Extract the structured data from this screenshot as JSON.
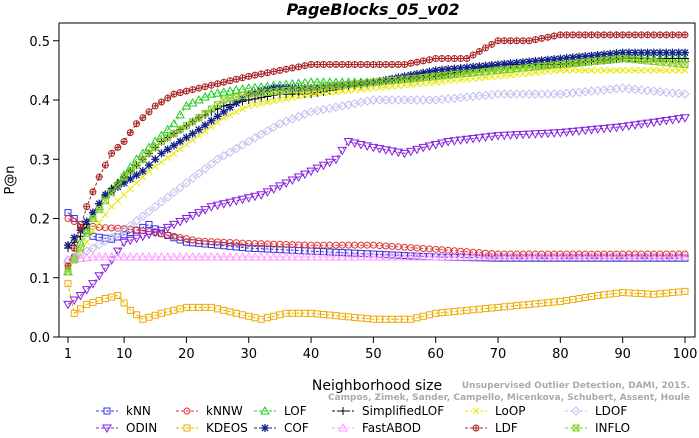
{
  "chart_data": {
    "type": "line",
    "title": "PageBlocks_05_v02",
    "xlabel": "Neighborhood size",
    "ylabel": "P@n",
    "xlim": [
      1,
      100
    ],
    "ylim": [
      0,
      0.53
    ],
    "xticks": [
      1,
      10,
      20,
      30,
      40,
      50,
      60,
      70,
      80,
      90,
      100
    ],
    "yticks": [
      0.0,
      0.1,
      0.2,
      0.3,
      0.4,
      0.5
    ],
    "grid": false,
    "legend_position": "bottom",
    "watermark": [
      "Campos, Zimek, Sander, Campello, Micenkova, Schubert, Assent, Houle",
      "Unsupervised Outlier Detection, DAMI, 2015."
    ],
    "series": [
      {
        "name": "kNN",
        "color": "#3333dd",
        "marker": "square",
        "points": [
          [
            1,
            0.21
          ],
          [
            3,
            0.19
          ],
          [
            5,
            0.17
          ],
          [
            8,
            0.165
          ],
          [
            12,
            0.18
          ],
          [
            14,
            0.19
          ],
          [
            16,
            0.175
          ],
          [
            20,
            0.16
          ],
          [
            25,
            0.155
          ],
          [
            30,
            0.15
          ],
          [
            40,
            0.145
          ],
          [
            50,
            0.14
          ],
          [
            60,
            0.135
          ],
          [
            70,
            0.133
          ],
          [
            80,
            0.133
          ],
          [
            90,
            0.133
          ],
          [
            100,
            0.133
          ]
        ]
      },
      {
        "name": "kNNW",
        "color": "#dd3333",
        "marker": "circle",
        "points": [
          [
            1,
            0.2
          ],
          [
            3,
            0.19
          ],
          [
            6,
            0.185
          ],
          [
            10,
            0.183
          ],
          [
            14,
            0.178
          ],
          [
            18,
            0.17
          ],
          [
            22,
            0.162
          ],
          [
            30,
            0.158
          ],
          [
            40,
            0.155
          ],
          [
            50,
            0.155
          ],
          [
            60,
            0.148
          ],
          [
            70,
            0.14
          ],
          [
            80,
            0.14
          ],
          [
            90,
            0.14
          ],
          [
            100,
            0.14
          ]
        ]
      },
      {
        "name": "LOF",
        "color": "#22cc22",
        "marker": "triangle-up",
        "points": [
          [
            1,
            0.11
          ],
          [
            3,
            0.16
          ],
          [
            5,
            0.2
          ],
          [
            7,
            0.24
          ],
          [
            9,
            0.26
          ],
          [
            12,
            0.3
          ],
          [
            15,
            0.33
          ],
          [
            18,
            0.36
          ],
          [
            20,
            0.39
          ],
          [
            24,
            0.41
          ],
          [
            30,
            0.42
          ],
          [
            40,
            0.43
          ],
          [
            50,
            0.43
          ],
          [
            60,
            0.44
          ],
          [
            70,
            0.45
          ],
          [
            80,
            0.46
          ],
          [
            90,
            0.47
          ],
          [
            100,
            0.47
          ]
        ]
      },
      {
        "name": "SimplifiedLOF",
        "color": "#000000",
        "marker": "plus",
        "points": [
          [
            1,
            0.15
          ],
          [
            3,
            0.17
          ],
          [
            5,
            0.21
          ],
          [
            7,
            0.24
          ],
          [
            10,
            0.27
          ],
          [
            13,
            0.3
          ],
          [
            16,
            0.33
          ],
          [
            19,
            0.35
          ],
          [
            22,
            0.37
          ],
          [
            26,
            0.39
          ],
          [
            30,
            0.4
          ],
          [
            35,
            0.41
          ],
          [
            40,
            0.41
          ],
          [
            45,
            0.42
          ],
          [
            50,
            0.43
          ],
          [
            60,
            0.44
          ],
          [
            70,
            0.46
          ],
          [
            80,
            0.46
          ],
          [
            90,
            0.47
          ],
          [
            100,
            0.47
          ]
        ]
      },
      {
        "name": "LoOP",
        "color": "#e8e800",
        "marker": "x",
        "points": [
          [
            1,
            0.12
          ],
          [
            3,
            0.14
          ],
          [
            5,
            0.18
          ],
          [
            8,
            0.22
          ],
          [
            11,
            0.25
          ],
          [
            14,
            0.28
          ],
          [
            18,
            0.31
          ],
          [
            22,
            0.34
          ],
          [
            26,
            0.37
          ],
          [
            30,
            0.39
          ],
          [
            35,
            0.4
          ],
          [
            40,
            0.41
          ],
          [
            50,
            0.42
          ],
          [
            60,
            0.43
          ],
          [
            70,
            0.44
          ],
          [
            80,
            0.45
          ],
          [
            90,
            0.45
          ],
          [
            100,
            0.45
          ]
        ]
      },
      {
        "name": "LDOF",
        "color": "#c0c0ee",
        "marker": "diamond",
        "points": [
          [
            1,
            0.13
          ],
          [
            5,
            0.15
          ],
          [
            10,
            0.18
          ],
          [
            15,
            0.22
          ],
          [
            20,
            0.26
          ],
          [
            25,
            0.3
          ],
          [
            30,
            0.33
          ],
          [
            35,
            0.36
          ],
          [
            40,
            0.38
          ],
          [
            45,
            0.39
          ],
          [
            50,
            0.4
          ],
          [
            60,
            0.4
          ],
          [
            70,
            0.41
          ],
          [
            80,
            0.41
          ],
          [
            90,
            0.42
          ],
          [
            100,
            0.41
          ]
        ]
      },
      {
        "name": "ODIN",
        "color": "#8822dd",
        "marker": "triangle-down",
        "points": [
          [
            1,
            0.055
          ],
          [
            3,
            0.07
          ],
          [
            5,
            0.09
          ],
          [
            8,
            0.13
          ],
          [
            10,
            0.16
          ],
          [
            13,
            0.17
          ],
          [
            16,
            0.18
          ],
          [
            20,
            0.2
          ],
          [
            24,
            0.22
          ],
          [
            28,
            0.23
          ],
          [
            32,
            0.24
          ],
          [
            36,
            0.26
          ],
          [
            40,
            0.28
          ],
          [
            44,
            0.3
          ],
          [
            46,
            0.33
          ],
          [
            50,
            0.32
          ],
          [
            55,
            0.31
          ],
          [
            58,
            0.32
          ],
          [
            62,
            0.33
          ],
          [
            70,
            0.34
          ],
          [
            80,
            0.345
          ],
          [
            90,
            0.355
          ],
          [
            100,
            0.37
          ]
        ]
      },
      {
        "name": "KDEOS",
        "color": "#eeaa00",
        "marker": "square",
        "points": [
          [
            1,
            0.09
          ],
          [
            2,
            0.04
          ],
          [
            4,
            0.055
          ],
          [
            7,
            0.065
          ],
          [
            9,
            0.07
          ],
          [
            11,
            0.045
          ],
          [
            13,
            0.03
          ],
          [
            16,
            0.04
          ],
          [
            20,
            0.05
          ],
          [
            24,
            0.05
          ],
          [
            28,
            0.04
          ],
          [
            32,
            0.03
          ],
          [
            36,
            0.04
          ],
          [
            40,
            0.04
          ],
          [
            45,
            0.035
          ],
          [
            50,
            0.03
          ],
          [
            56,
            0.03
          ],
          [
            60,
            0.04
          ],
          [
            65,
            0.045
          ],
          [
            70,
            0.05
          ],
          [
            75,
            0.055
          ],
          [
            80,
            0.06
          ],
          [
            86,
            0.07
          ],
          [
            90,
            0.075
          ],
          [
            95,
            0.072
          ],
          [
            100,
            0.077
          ]
        ]
      },
      {
        "name": "COF",
        "color": "#112288",
        "marker": "asterisk",
        "points": [
          [
            1,
            0.155
          ],
          [
            3,
            0.18
          ],
          [
            5,
            0.21
          ],
          [
            7,
            0.24
          ],
          [
            10,
            0.26
          ],
          [
            13,
            0.28
          ],
          [
            16,
            0.31
          ],
          [
            19,
            0.33
          ],
          [
            22,
            0.35
          ],
          [
            26,
            0.38
          ],
          [
            30,
            0.41
          ],
          [
            34,
            0.42
          ],
          [
            40,
            0.42
          ],
          [
            50,
            0.43
          ],
          [
            60,
            0.45
          ],
          [
            70,
            0.46
          ],
          [
            80,
            0.47
          ],
          [
            90,
            0.48
          ],
          [
            100,
            0.48
          ]
        ]
      },
      {
        "name": "FastABOD",
        "color": "#ff99ff",
        "marker": "triangle-up",
        "points": [
          [
            1,
            0.13
          ],
          [
            5,
            0.135
          ],
          [
            10,
            0.135
          ],
          [
            20,
            0.135
          ],
          [
            30,
            0.135
          ],
          [
            40,
            0.135
          ],
          [
            50,
            0.135
          ],
          [
            60,
            0.135
          ],
          [
            70,
            0.135
          ],
          [
            80,
            0.135
          ],
          [
            90,
            0.135
          ],
          [
            100,
            0.135
          ]
        ]
      },
      {
        "name": "LDF",
        "color": "#aa2222",
        "marker": "circle-plus",
        "points": [
          [
            1,
            0.12
          ],
          [
            2,
            0.15
          ],
          [
            4,
            0.22
          ],
          [
            6,
            0.27
          ],
          [
            8,
            0.31
          ],
          [
            10,
            0.33
          ],
          [
            12,
            0.36
          ],
          [
            15,
            0.39
          ],
          [
            18,
            0.41
          ],
          [
            22,
            0.42
          ],
          [
            26,
            0.43
          ],
          [
            30,
            0.44
          ],
          [
            35,
            0.45
          ],
          [
            40,
            0.46
          ],
          [
            45,
            0.46
          ],
          [
            50,
            0.46
          ],
          [
            55,
            0.46
          ],
          [
            60,
            0.47
          ],
          [
            65,
            0.47
          ],
          [
            70,
            0.5
          ],
          [
            75,
            0.5
          ],
          [
            80,
            0.51
          ],
          [
            90,
            0.51
          ],
          [
            100,
            0.51
          ]
        ]
      },
      {
        "name": "INFLO",
        "color": "#88cc22",
        "marker": "square-x",
        "points": [
          [
            1,
            0.11
          ],
          [
            3,
            0.15
          ],
          [
            5,
            0.2
          ],
          [
            7,
            0.23
          ],
          [
            10,
            0.27
          ],
          [
            13,
            0.3
          ],
          [
            16,
            0.33
          ],
          [
            19,
            0.35
          ],
          [
            22,
            0.37
          ],
          [
            26,
            0.4
          ],
          [
            30,
            0.41
          ],
          [
            40,
            0.42
          ],
          [
            50,
            0.43
          ],
          [
            60,
            0.44
          ],
          [
            70,
            0.45
          ],
          [
            80,
            0.46
          ],
          [
            90,
            0.47
          ],
          [
            100,
            0.46
          ]
        ]
      }
    ]
  }
}
